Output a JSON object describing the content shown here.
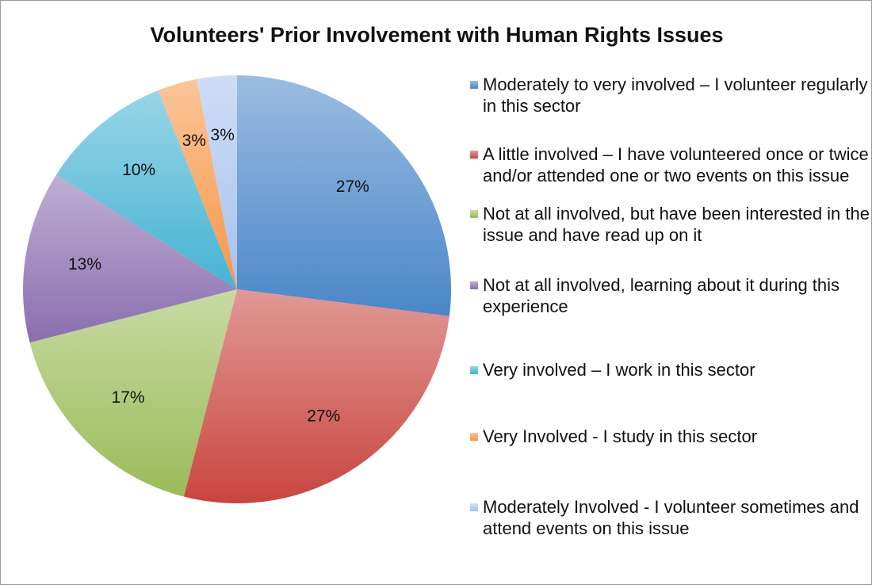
{
  "chart_data": {
    "type": "pie",
    "title": "Volunteers' Prior Involvement with Human Rights Issues",
    "categories": [
      "Moderately to very involved – I volunteer regularly in this sector",
      "A little involved – I have volunteered once or twice and/or attended one or two events on this issue",
      "Not at all involved, but have been interested in the issue and have read up on it",
      "Not at all involved, learning about it during this experience",
      "Very involved – I work in this sector",
      "Very Involved - I study in this sector",
      "Moderately Involved - I volunteer sometimes and attend events on this issue"
    ],
    "values": [
      27,
      27,
      17,
      13,
      10,
      3,
      3
    ],
    "value_labels": [
      "27%",
      "27%",
      "17%",
      "13%",
      "10%",
      "3%",
      "3%"
    ],
    "colors": [
      "#4a86c8",
      "#c9453f",
      "#9bbb59",
      "#8a6eaf",
      "#45b3d3",
      "#f79646",
      "#a6c2ef"
    ]
  }
}
